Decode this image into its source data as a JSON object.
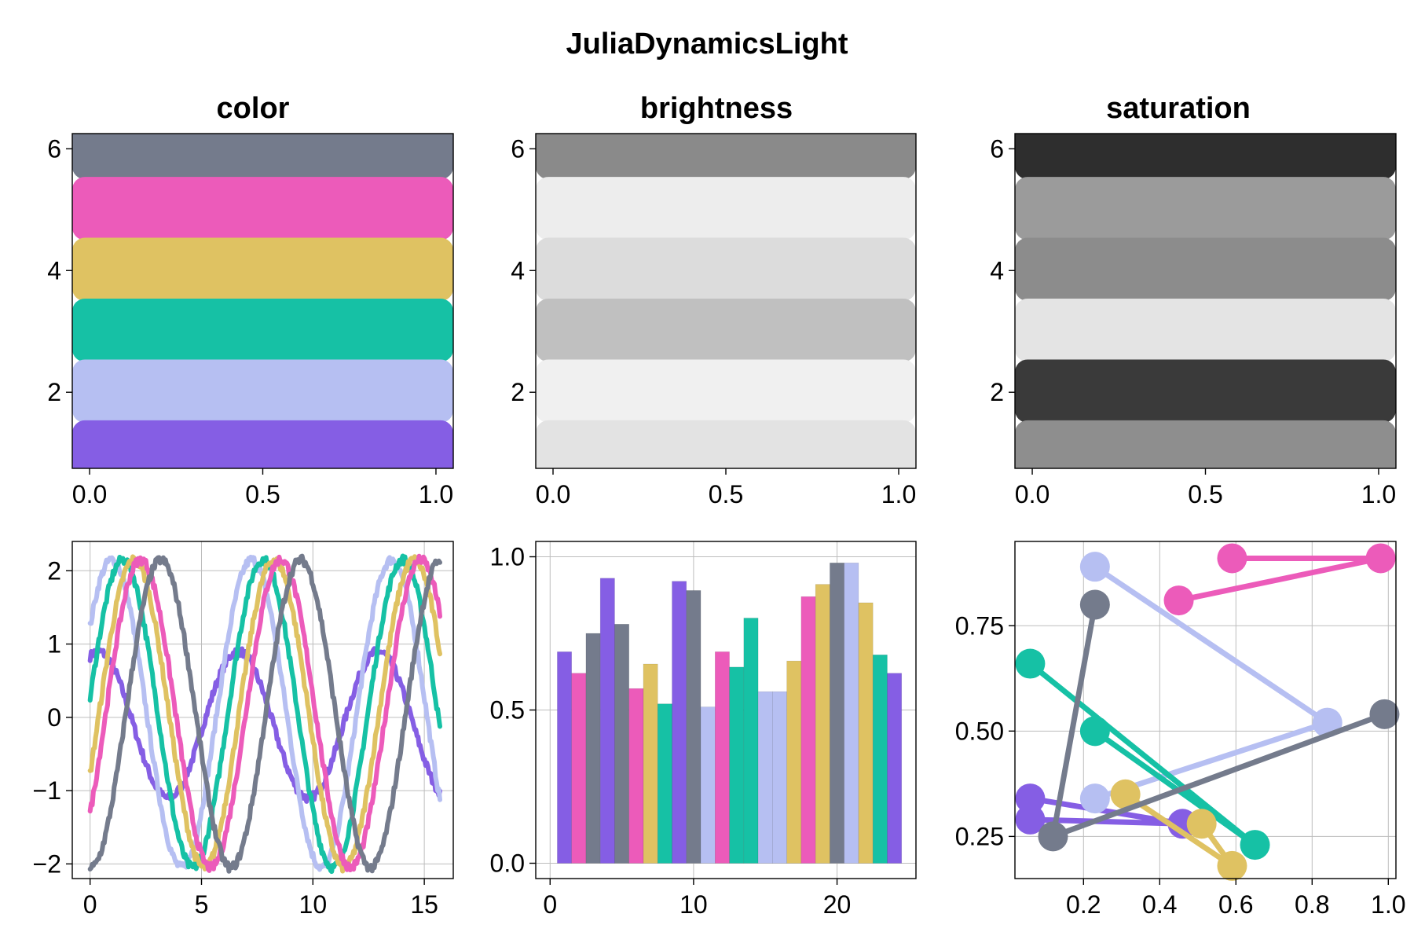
{
  "figure": {
    "title": "JuliaDynamicsLight"
  },
  "palette": {
    "color": [
      "#855ee4",
      "#b6bff2",
      "#16c1a5",
      "#dfc262",
      "#ec5bba",
      "#747b8c"
    ],
    "brightness": [
      "#e3e3e3",
      "#f0f0f0",
      "#c0c0c0",
      "#dcdcdc",
      "#ededed",
      "#8a8a8a"
    ],
    "saturation": [
      "#8e8e8e",
      "#3a3a3a",
      "#e4e4e4",
      "#8c8c8c",
      "#9b9b9b",
      "#2e2e2e"
    ]
  },
  "chart_data": [
    {
      "id": "color",
      "type": "bar",
      "orientation": "horizontal",
      "title": "color",
      "bands": [
        1,
        2,
        3,
        4,
        5,
        6
      ],
      "xlim": [
        -0.05,
        1.05
      ],
      "ylim": [
        0.75,
        6.25
      ],
      "xticks": [
        "0.0",
        "0.5",
        "1.0"
      ],
      "xtick_values": [
        0,
        0.5,
        1
      ],
      "yticks": [
        "2",
        "4",
        "6"
      ],
      "ytick_values": [
        2,
        4,
        6
      ],
      "grid": false,
      "palette_key": "color"
    },
    {
      "id": "brightness",
      "type": "bar",
      "orientation": "horizontal",
      "title": "brightness",
      "bands": [
        1,
        2,
        3,
        4,
        5,
        6
      ],
      "xlim": [
        -0.05,
        1.05
      ],
      "ylim": [
        0.75,
        6.25
      ],
      "xticks": [
        "0.0",
        "0.5",
        "1.0"
      ],
      "xtick_values": [
        0,
        0.5,
        1
      ],
      "yticks": [
        "2",
        "4",
        "6"
      ],
      "ytick_values": [
        2,
        4,
        6
      ],
      "grid": false,
      "palette_key": "brightness"
    },
    {
      "id": "saturation",
      "type": "bar",
      "orientation": "horizontal",
      "title": "saturation",
      "bands": [
        1,
        2,
        3,
        4,
        5,
        6
      ],
      "xlim": [
        -0.05,
        1.05
      ],
      "ylim": [
        0.75,
        6.25
      ],
      "xticks": [
        "0.0",
        "0.5",
        "1.0"
      ],
      "xtick_values": [
        0,
        0.5,
        1
      ],
      "yticks": [
        "2",
        "4",
        "6"
      ],
      "ytick_values": [
        2,
        4,
        6
      ],
      "grid": false,
      "palette_key": "saturation"
    },
    {
      "id": "lines",
      "type": "line",
      "title": "",
      "xlim": [
        -0.8,
        16.3
      ],
      "ylim": [
        -2.2,
        2.4
      ],
      "xticks": [
        "0",
        "5",
        "10",
        "15"
      ],
      "xtick_values": [
        0,
        5,
        10,
        15
      ],
      "yticks": [
        "−2",
        "−1",
        "0",
        "1",
        "2"
      ],
      "ytick_values": [
        -2,
        -1,
        0,
        1,
        2
      ],
      "grid": true,
      "x_range": [
        0,
        15.7
      ],
      "noise": 0.06,
      "series": [
        {
          "color": "#855ee4",
          "amplitude": 1.0,
          "phase": 1.2,
          "offset": 0.2,
          "center": -0.1
        },
        {
          "color": "#b6bff2",
          "amplitude": 2.1,
          "phase": 0.6,
          "offset": 0.0,
          "center": 0.05
        },
        {
          "color": "#16c1a5",
          "amplitude": 2.1,
          "phase": 0.1,
          "offset": 0.0,
          "center": 0.05
        },
        {
          "color": "#dfc262",
          "amplitude": 2.1,
          "phase": -0.4,
          "offset": 0.0,
          "center": 0.05
        },
        {
          "color": "#ec5bba",
          "amplitude": 2.1,
          "phase": -0.7,
          "offset": 0.0,
          "center": 0.05
        },
        {
          "color": "#747b8c",
          "amplitude": 2.1,
          "phase": -1.6,
          "offset": 0.0,
          "center": 0.05
        }
      ]
    },
    {
      "id": "bars",
      "type": "bar",
      "title": "",
      "xlim": [
        -1,
        25.5
      ],
      "ylim": [
        -0.05,
        1.05
      ],
      "xticks": [
        "0",
        "10",
        "20"
      ],
      "xtick_values": [
        0,
        10,
        20
      ],
      "yticks": [
        "0.0",
        "0.5",
        "1.0"
      ],
      "ytick_values": [
        0,
        0.5,
        1
      ],
      "grid": true,
      "x": [
        1,
        2,
        3,
        4,
        5,
        6,
        7,
        8,
        9,
        10,
        11,
        12,
        13,
        14,
        15,
        16,
        17,
        18,
        19,
        20,
        21,
        22,
        23,
        24
      ],
      "values": [
        0.69,
        0.62,
        0.75,
        0.93,
        0.78,
        0.57,
        0.65,
        0.52,
        0.92,
        0.89,
        0.51,
        0.69,
        0.64,
        0.8,
        0.56,
        0.56,
        0.66,
        0.87,
        0.91,
        0.98,
        0.98,
        0.85,
        0.68,
        0.62
      ],
      "colors": [
        "#855ee4",
        "#ec5bba",
        "#747b8c",
        "#855ee4",
        "#747b8c",
        "#ec5bba",
        "#dfc262",
        "#16c1a5",
        "#855ee4",
        "#747b8c",
        "#b6bff2",
        "#ec5bba",
        "#16c1a5",
        "#16c1a5",
        "#b6bff2",
        "#b6bff2",
        "#dfc262",
        "#ec5bba",
        "#dfc262",
        "#747b8c",
        "#b6bff2",
        "#dfc262",
        "#16c1a5",
        "#855ee4"
      ]
    },
    {
      "id": "scatter",
      "type": "scatter",
      "title": "",
      "xlim": [
        0.02,
        1.02
      ],
      "ylim": [
        0.15,
        0.95
      ],
      "xticks": [
        "0.2",
        "0.4",
        "0.6",
        "0.8",
        "1.0"
      ],
      "xtick_values": [
        0.2,
        0.4,
        0.6,
        0.8,
        1.0
      ],
      "yticks": [
        "0.25",
        "0.50",
        "0.75"
      ],
      "ytick_values": [
        0.25,
        0.5,
        0.75
      ],
      "grid": true,
      "series": [
        {
          "color": "#855ee4",
          "points": [
            [
              0.06,
              0.34
            ],
            [
              0.46,
              0.28
            ],
            [
              0.06,
              0.29
            ]
          ]
        },
        {
          "color": "#b6bff2",
          "points": [
            [
              0.23,
              0.89
            ],
            [
              0.84,
              0.52
            ],
            [
              0.23,
              0.34
            ]
          ]
        },
        {
          "color": "#16c1a5",
          "points": [
            [
              0.06,
              0.66
            ],
            [
              0.65,
              0.23
            ],
            [
              0.23,
              0.5
            ]
          ]
        },
        {
          "color": "#dfc262",
          "points": [
            [
              0.31,
              0.35
            ],
            [
              0.59,
              0.18
            ],
            [
              0.51,
              0.28
            ]
          ]
        },
        {
          "color": "#ec5bba",
          "points": [
            [
              0.45,
              0.81
            ],
            [
              0.98,
              0.91
            ],
            [
              0.59,
              0.91
            ]
          ]
        },
        {
          "color": "#747b8c",
          "points": [
            [
              0.23,
              0.8
            ],
            [
              0.12,
              0.25
            ],
            [
              0.99,
              0.54
            ]
          ]
        }
      ]
    }
  ]
}
